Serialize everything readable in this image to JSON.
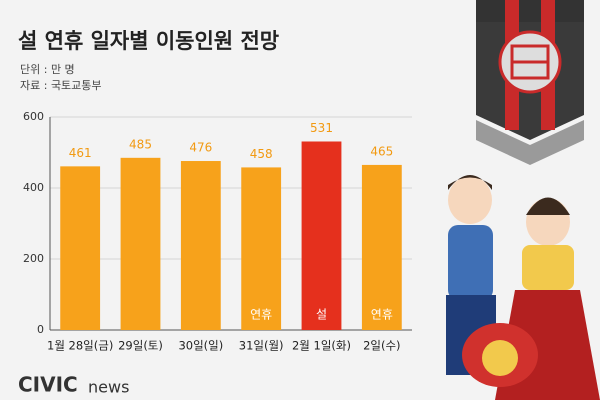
{
  "chart_data": {
    "type": "bar",
    "title": "설 연휴 일자별 이동인원 전망",
    "unit_note": "단위 : 만 명",
    "source_note": "자료 : 국토교통부",
    "categories": [
      "1월 28일(금)",
      "29일(토)",
      "30일(일)",
      "31일(월)",
      "2월 1일(화)",
      "2일(수)"
    ],
    "values": [
      461,
      485,
      476,
      458,
      531,
      465
    ],
    "colors": [
      "#f7a21b",
      "#f7a21b",
      "#f7a21b",
      "#f7a21b",
      "#e5301d",
      "#f7a21b"
    ],
    "bar_labels": [
      null,
      null,
      null,
      "연휴",
      "설",
      "연휴"
    ],
    "ylim": [
      0,
      600
    ],
    "yticks": [
      0,
      200,
      400,
      600
    ],
    "grid": true,
    "logo": {
      "brand": "CIVIC",
      "suffix": "news"
    }
  }
}
